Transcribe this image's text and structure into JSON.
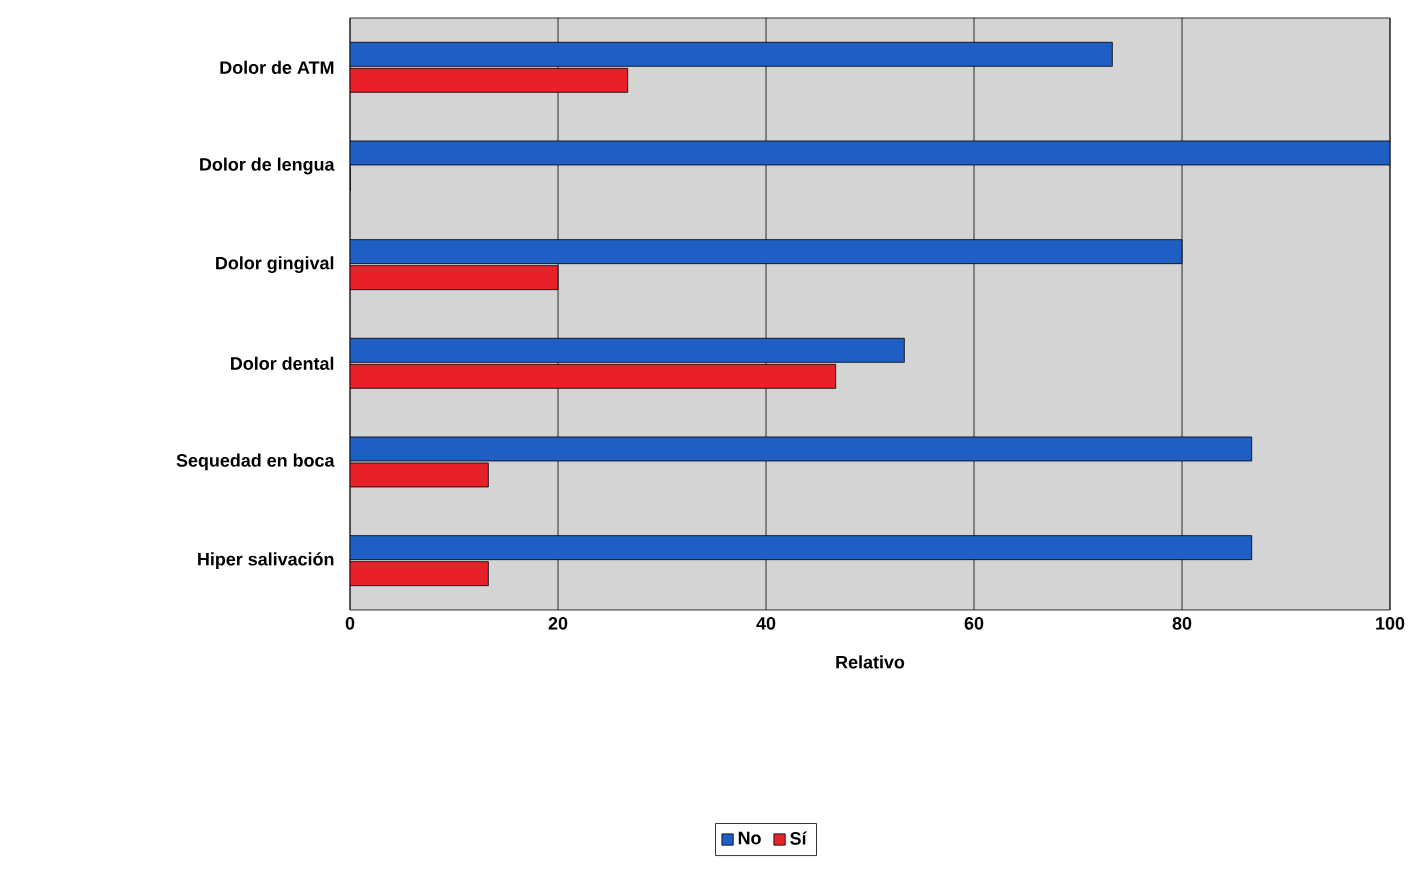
{
  "chart_data": {
    "type": "bar",
    "orientation": "horizontal",
    "xlabel": "Relativo",
    "categories": [
      "Dolor de ATM",
      "Dolor de lengua",
      "Dolor gingival",
      "Dolor dental",
      "Sequedad en boca",
      "Hiper salivación"
    ],
    "series": [
      {
        "name": "No",
        "color": "#1f5fc4",
        "values": [
          73.3,
          100,
          80,
          53.3,
          86.7,
          86.7
        ]
      },
      {
        "name": "Sí",
        "color": "#e8202a",
        "values": [
          26.7,
          0,
          20,
          46.7,
          13.3,
          13.3
        ]
      }
    ],
    "xlim": [
      0,
      100
    ],
    "xticks": [
      0,
      20,
      40,
      60,
      80,
      100
    ],
    "grid": "x",
    "legend": "bottom"
  }
}
